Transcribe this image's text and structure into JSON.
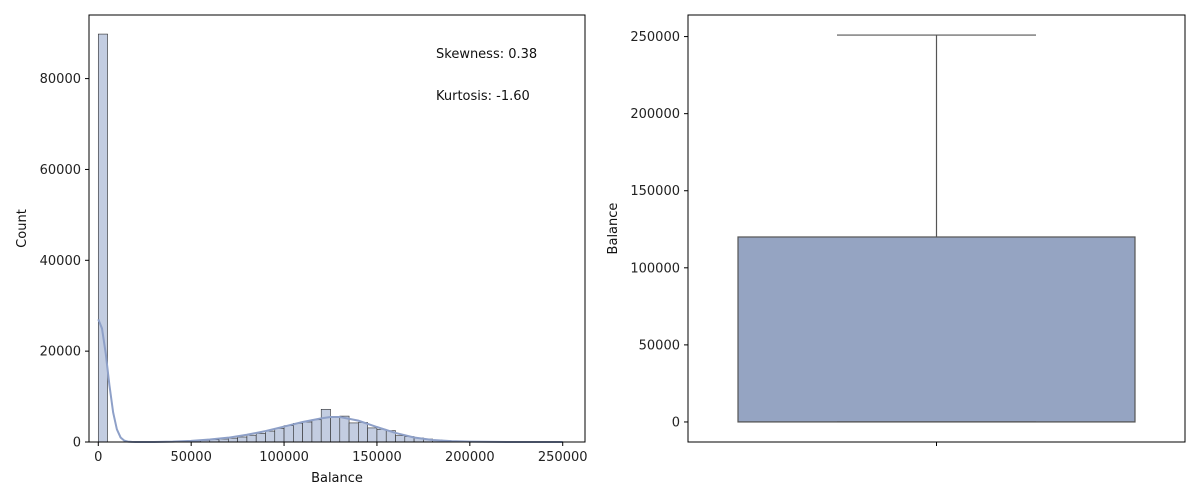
{
  "chart_data": [
    {
      "type": "bar",
      "subtype": "histogram-with-kde",
      "xlabel": "Balance",
      "ylabel": "Count",
      "xlim": [
        -5000,
        262000
      ],
      "ylim": [
        0,
        94000
      ],
      "xticks": [
        0,
        50000,
        100000,
        150000,
        200000,
        250000
      ],
      "xtick_labels": [
        "0",
        "50000",
        "100000",
        "150000",
        "200000",
        "250000"
      ],
      "yticks": [
        0,
        20000,
        40000,
        60000,
        80000
      ],
      "ytick_labels": [
        "0",
        "20000",
        "40000",
        "60000",
        "80000"
      ],
      "bin_width": 5000,
      "bin_starts": [
        0,
        5000,
        10000,
        15000,
        20000,
        25000,
        30000,
        35000,
        40000,
        45000,
        50000,
        55000,
        60000,
        65000,
        70000,
        75000,
        80000,
        85000,
        90000,
        95000,
        100000,
        105000,
        110000,
        115000,
        120000,
        125000,
        130000,
        135000,
        140000,
        145000,
        150000,
        155000,
        160000,
        165000,
        170000,
        175000,
        180000,
        185000,
        190000,
        195000,
        200000,
        205000,
        210000,
        215000,
        220000,
        225000,
        230000,
        235000,
        240000,
        245000
      ],
      "counts": [
        89800,
        0,
        0,
        0,
        20,
        40,
        60,
        90,
        130,
        180,
        260,
        360,
        500,
        650,
        850,
        1100,
        1500,
        1900,
        2400,
        3000,
        3600,
        4100,
        4400,
        4900,
        7200,
        5400,
        5700,
        4200,
        4300,
        3100,
        2800,
        2500,
        1400,
        1200,
        900,
        650,
        450,
        300,
        200,
        130,
        90,
        60,
        40,
        25,
        15,
        10,
        6,
        4,
        2,
        1
      ],
      "kde": {
        "x": [
          0,
          2000,
          4000,
          6000,
          8000,
          10000,
          12000,
          14000,
          16000,
          18000,
          20000,
          25000,
          30000,
          40000,
          50000,
          60000,
          70000,
          80000,
          90000,
          100000,
          110000,
          120000,
          125000,
          130000,
          140000,
          150000,
          160000,
          170000,
          180000,
          190000,
          200000,
          220000,
          250000
        ],
        "y": [
          27000,
          25000,
          19500,
          12500,
          6500,
          2800,
          1000,
          300,
          80,
          20,
          5,
          0,
          0,
          80,
          250,
          550,
          950,
          1600,
          2400,
          3400,
          4400,
          5200,
          5500,
          5500,
          4700,
          3300,
          2000,
          1000,
          450,
          180,
          70,
          10,
          0
        ]
      },
      "annotations": [
        "Skewness: 0.38",
        "Kurtosis: -1.60"
      ],
      "colors": {
        "bar_fill": "#c3cde1",
        "bar_edge": "#2b2b2b",
        "kde": "#8ea0c8"
      },
      "grid": false
    },
    {
      "type": "box",
      "ylabel": "Balance",
      "ylim": [
        -13000,
        264000
      ],
      "yticks": [
        0,
        50000,
        100000,
        150000,
        200000,
        250000
      ],
      "ytick_labels": [
        "0",
        "50000",
        "100000",
        "150000",
        "200000",
        "250000"
      ],
      "stats": {
        "min": 0,
        "q1": 0,
        "median": 0,
        "q3": 120000,
        "max": 251000
      },
      "colors": {
        "box_fill": "#95a4c2",
        "line": "#555555"
      },
      "grid": false
    }
  ]
}
